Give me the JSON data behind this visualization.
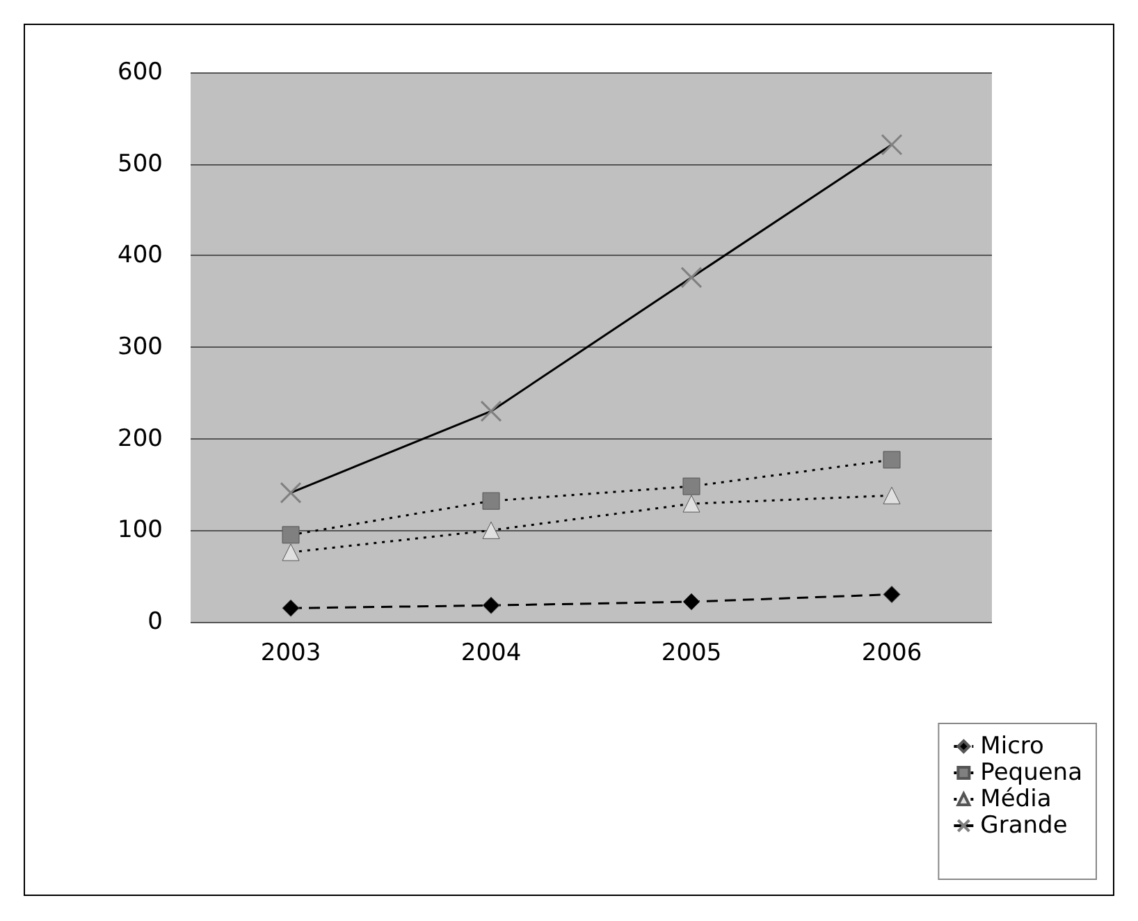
{
  "chart_data": {
    "type": "line",
    "categories": [
      "2003",
      "2004",
      "2005",
      "2006"
    ],
    "series": [
      {
        "name": "Micro",
        "color": "#000000",
        "marker": "diamond",
        "line_style": "dashed",
        "values": [
          15,
          18,
          22,
          30
        ]
      },
      {
        "name": "Pequena",
        "color": "#808080",
        "marker": "square",
        "line_style": "dotted",
        "values": [
          95,
          132,
          148,
          177
        ]
      },
      {
        "name": "Média",
        "color": "#e0e0e0",
        "marker": "triangle",
        "line_style": "dotted",
        "values": [
          76,
          100,
          129,
          138
        ]
      },
      {
        "name": "Grande",
        "color": "#808080",
        "marker": "cross",
        "line_style": "solid",
        "values": [
          141,
          230,
          376,
          521
        ]
      }
    ],
    "ylim": [
      0,
      600
    ],
    "yticks": [
      0,
      100,
      200,
      300,
      400,
      500,
      600
    ],
    "grid": "y",
    "legend": "bottom right"
  }
}
